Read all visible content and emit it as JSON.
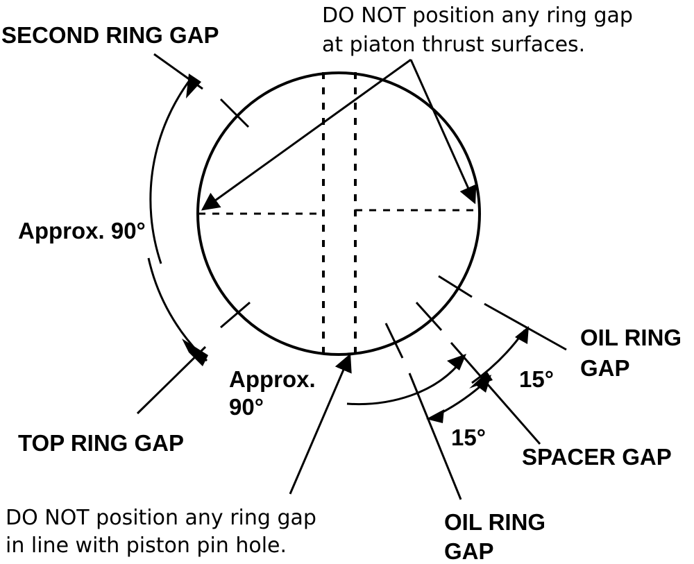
{
  "labels": {
    "second_ring_gap": "SECOND RING GAP",
    "thrust_note_line1": "DO NOT position any ring gap",
    "thrust_note_line2": "at piaton thrust surfaces.",
    "approx_90_left": "Approx. 90°",
    "approx_90_bottom_line1": "Approx.",
    "approx_90_bottom_line2": "90°",
    "top_ring_gap": "TOP RING GAP",
    "oil_ring_gap_upper_line1": "OIL RING",
    "oil_ring_gap_upper_line2": "GAP",
    "angle_15_upper": "15°",
    "angle_15_lower": "15°",
    "spacer_gap": "SPACER GAP",
    "oil_ring_gap_lower_line1": "OIL RING",
    "oil_ring_gap_lower_line2": "GAP",
    "pin_note_line1": "DO NOT position any ring gap",
    "pin_note_line2": "in line with piston pin hole."
  },
  "colors": {
    "ink": "#000000",
    "background": "#ffffff"
  }
}
